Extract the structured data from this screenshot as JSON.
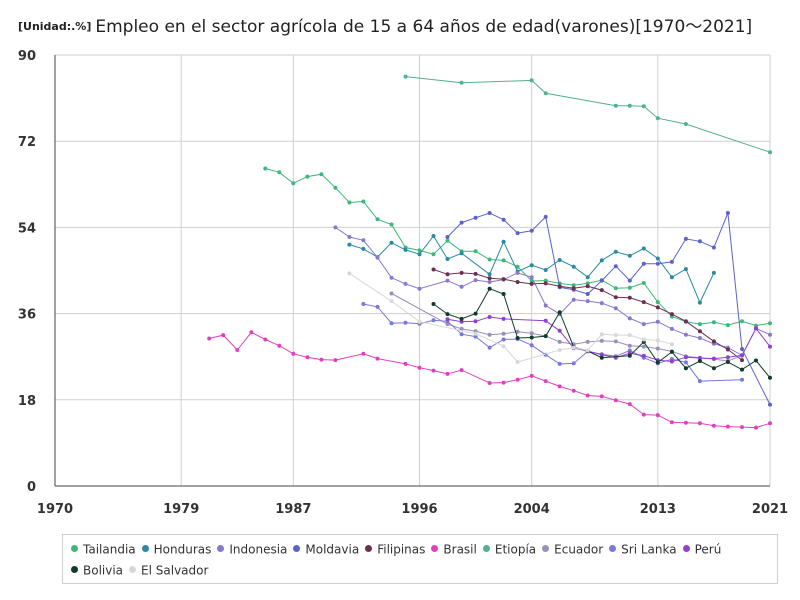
{
  "header": {
    "unit": "[Unidad:.%]",
    "title": "Empleo en el sector agrícola de 15 a 64 años de edad(varones)[1970～2021]"
  },
  "chart_data": {
    "type": "line",
    "xlim": [
      1970,
      2021
    ],
    "ylim": [
      0,
      90
    ],
    "x_ticks": [
      1970,
      1979,
      1987,
      1996,
      2004,
      2013,
      2021
    ],
    "y_ticks": [
      0,
      18,
      36,
      54,
      72,
      90
    ],
    "grid": true,
    "legend_position": "bottom",
    "series": [
      {
        "name": "Tailandia",
        "color": "#3cb878",
        "points": [
          [
            1985,
            66.3
          ],
          [
            1986,
            65.5
          ],
          [
            1987,
            63.2
          ],
          [
            1988,
            64.6
          ],
          [
            1989,
            65.1
          ],
          [
            1990,
            62.3
          ],
          [
            1991,
            59.2
          ],
          [
            1992,
            59.4
          ],
          [
            1993,
            55.7
          ],
          [
            1994,
            54.6
          ],
          [
            1995,
            49.8
          ],
          [
            1996,
            49.2
          ],
          [
            1997,
            48.4
          ],
          [
            1998,
            51.2
          ],
          [
            1999,
            49.0
          ],
          [
            2000,
            49.0
          ],
          [
            2001,
            47.3
          ],
          [
            2002,
            47.1
          ],
          [
            2003,
            45.8
          ],
          [
            2004,
            42.8
          ],
          [
            2005,
            42.9
          ],
          [
            2006,
            42.3
          ],
          [
            2007,
            41.9
          ],
          [
            2008,
            42.3
          ],
          [
            2009,
            43.0
          ],
          [
            2010,
            41.3
          ],
          [
            2011,
            41.4
          ],
          [
            2012,
            42.4
          ],
          [
            2013,
            38.4
          ],
          [
            2014,
            35.4
          ],
          [
            2015,
            34.3
          ],
          [
            2016,
            33.8
          ],
          [
            2017,
            34.2
          ],
          [
            2018,
            33.6
          ],
          [
            2019,
            34.4
          ],
          [
            2020,
            33.5
          ],
          [
            2021,
            34.0
          ]
        ]
      },
      {
        "name": "Honduras",
        "color": "#2a8aa0",
        "points": [
          [
            1991,
            50.4
          ],
          [
            1992,
            49.5
          ],
          [
            1993,
            47.8
          ],
          [
            1994,
            50.8
          ],
          [
            1995,
            49.3
          ],
          [
            1996,
            48.4
          ],
          [
            1997,
            52.2
          ],
          [
            1998,
            47.4
          ],
          [
            1999,
            48.6
          ],
          [
            2001,
            44.2
          ],
          [
            2002,
            51.0
          ],
          [
            2003,
            44.8
          ],
          [
            2004,
            46.1
          ],
          [
            2005,
            45.1
          ],
          [
            2006,
            47.2
          ],
          [
            2007,
            45.8
          ],
          [
            2008,
            43.6
          ],
          [
            2009,
            47.1
          ],
          [
            2010,
            48.9
          ],
          [
            2011,
            48.1
          ],
          [
            2012,
            49.6
          ],
          [
            2013,
            47.5
          ],
          [
            2014,
            43.6
          ],
          [
            2015,
            45.3
          ],
          [
            2016,
            38.3
          ],
          [
            2017,
            44.5
          ]
        ]
      },
      {
        "name": "Indonesia",
        "color": "#8878d0",
        "points": [
          [
            1990,
            54.0
          ],
          [
            1991,
            52.0
          ],
          [
            1992,
            51.3
          ],
          [
            1993,
            47.7
          ],
          [
            1994,
            43.5
          ],
          [
            1995,
            42.2
          ],
          [
            1996,
            41.2
          ],
          [
            1998,
            42.9
          ],
          [
            1999,
            41.6
          ],
          [
            2000,
            43.0
          ],
          [
            2001,
            42.6
          ],
          [
            2002,
            43.1
          ],
          [
            2003,
            44.5
          ],
          [
            2004,
            43.6
          ],
          [
            2005,
            37.7
          ],
          [
            2006,
            35.9
          ],
          [
            2007,
            38.9
          ],
          [
            2008,
            38.6
          ],
          [
            2009,
            38.2
          ],
          [
            2010,
            37.1
          ],
          [
            2011,
            35.0
          ],
          [
            2012,
            33.8
          ],
          [
            2013,
            34.3
          ],
          [
            2014,
            32.8
          ],
          [
            2015,
            31.6
          ],
          [
            2016,
            30.9
          ],
          [
            2017,
            29.7
          ],
          [
            2018,
            28.9
          ],
          [
            2019,
            27.3
          ],
          [
            2020,
            32.9
          ],
          [
            2021,
            31.6
          ]
        ]
      },
      {
        "name": "Moldavia",
        "color": "#5b62c8",
        "points": [
          [
            1998,
            52.0
          ],
          [
            1999,
            55.0
          ],
          [
            2000,
            56.0
          ],
          [
            2001,
            57.0
          ],
          [
            2002,
            55.6
          ],
          [
            2003,
            52.8
          ],
          [
            2004,
            53.3
          ],
          [
            2005,
            56.2
          ],
          [
            2006,
            41.5
          ],
          [
            2007,
            41.0
          ],
          [
            2008,
            40.1
          ],
          [
            2009,
            42.9
          ],
          [
            2010,
            45.9
          ],
          [
            2011,
            42.9
          ],
          [
            2012,
            46.4
          ],
          [
            2013,
            46.4
          ],
          [
            2014,
            46.8
          ],
          [
            2015,
            51.6
          ],
          [
            2016,
            51.1
          ],
          [
            2017,
            49.8
          ],
          [
            2018,
            57.0
          ],
          [
            2019,
            28.6
          ],
          [
            2021,
            17.0
          ]
        ]
      },
      {
        "name": "Filipinas",
        "color": "#6b3050",
        "points": [
          [
            1997,
            45.2
          ],
          [
            1998,
            44.2
          ],
          [
            1999,
            44.5
          ],
          [
            2000,
            44.3
          ],
          [
            2001,
            43.4
          ],
          [
            2002,
            43.2
          ],
          [
            2003,
            42.6
          ],
          [
            2004,
            42.2
          ],
          [
            2005,
            42.3
          ],
          [
            2006,
            41.7
          ],
          [
            2007,
            41.3
          ],
          [
            2008,
            41.7
          ],
          [
            2009,
            40.9
          ],
          [
            2010,
            39.4
          ],
          [
            2011,
            39.3
          ],
          [
            2012,
            38.4
          ],
          [
            2013,
            37.3
          ],
          [
            2014,
            35.9
          ],
          [
            2015,
            34.4
          ],
          [
            2016,
            32.3
          ],
          [
            2017,
            30.2
          ],
          [
            2018,
            28.5
          ],
          [
            2019,
            26.3
          ]
        ]
      },
      {
        "name": "Brasil",
        "color": "#e040c0",
        "points": [
          [
            1981,
            30.8
          ],
          [
            1982,
            31.5
          ],
          [
            1983,
            28.4
          ],
          [
            1984,
            32.1
          ],
          [
            1985,
            30.6
          ],
          [
            1986,
            29.3
          ],
          [
            1987,
            27.6
          ],
          [
            1988,
            26.9
          ],
          [
            1989,
            26.4
          ],
          [
            1990,
            26.3
          ],
          [
            1992,
            27.6
          ],
          [
            1993,
            26.6
          ],
          [
            1995,
            25.5
          ],
          [
            1996,
            24.7
          ],
          [
            1997,
            24.1
          ],
          [
            1998,
            23.4
          ],
          [
            1999,
            24.2
          ],
          [
            2001,
            21.5
          ],
          [
            2002,
            21.6
          ],
          [
            2003,
            22.2
          ],
          [
            2004,
            23.0
          ],
          [
            2005,
            21.9
          ],
          [
            2006,
            20.8
          ],
          [
            2007,
            19.9
          ],
          [
            2008,
            18.9
          ],
          [
            2009,
            18.7
          ],
          [
            2010,
            17.9
          ],
          [
            2011,
            17.1
          ],
          [
            2012,
            14.9
          ],
          [
            2013,
            14.8
          ],
          [
            2014,
            13.3
          ],
          [
            2015,
            13.2
          ],
          [
            2016,
            13.1
          ],
          [
            2017,
            12.6
          ],
          [
            2018,
            12.4
          ],
          [
            2019,
            12.3
          ],
          [
            2020,
            12.2
          ],
          [
            2021,
            13.1
          ]
        ]
      },
      {
        "name": "Etiopía",
        "color": "#50b090",
        "points": [
          [
            1995,
            85.5
          ],
          [
            1999,
            84.2
          ],
          [
            2004,
            84.7
          ],
          [
            2005,
            82.0
          ],
          [
            2010,
            79.4
          ],
          [
            2011,
            79.4
          ],
          [
            2012,
            79.3
          ],
          [
            2013,
            76.8
          ],
          [
            2015,
            75.6
          ],
          [
            2021,
            69.7
          ]
        ]
      },
      {
        "name": "Ecuador",
        "color": "#9890b8",
        "points": [
          [
            1994,
            40.2
          ],
          [
            1998,
            33.8
          ],
          [
            1999,
            32.8
          ],
          [
            2000,
            32.3
          ],
          [
            2001,
            31.6
          ],
          [
            2002,
            31.8
          ],
          [
            2003,
            32.2
          ],
          [
            2004,
            31.9
          ],
          [
            2005,
            31.3
          ],
          [
            2006,
            30.1
          ],
          [
            2007,
            29.6
          ],
          [
            2008,
            30.1
          ],
          [
            2009,
            30.3
          ],
          [
            2010,
            30.2
          ],
          [
            2011,
            29.3
          ],
          [
            2012,
            29.1
          ],
          [
            2013,
            28.7
          ],
          [
            2014,
            28.1
          ],
          [
            2015,
            27.1
          ],
          [
            2016,
            26.8
          ],
          [
            2017,
            26.5
          ],
          [
            2018,
            26.1
          ],
          [
            2019,
            27.2
          ]
        ]
      },
      {
        "name": "Sri Lanka",
        "color": "#7a78d8",
        "points": [
          [
            1992,
            38.0
          ],
          [
            1993,
            37.4
          ],
          [
            1994,
            34.0
          ],
          [
            1995,
            34.1
          ],
          [
            1996,
            33.9
          ],
          [
            1997,
            34.6
          ],
          [
            1998,
            34.4
          ],
          [
            1999,
            31.7
          ],
          [
            2000,
            31.2
          ],
          [
            2001,
            28.9
          ],
          [
            2002,
            30.6
          ],
          [
            2003,
            30.7
          ],
          [
            2004,
            29.4
          ],
          [
            2005,
            27.4
          ],
          [
            2006,
            25.5
          ],
          [
            2007,
            25.6
          ],
          [
            2008,
            28.1
          ],
          [
            2009,
            27.5
          ],
          [
            2010,
            27.1
          ],
          [
            2011,
            28.3
          ],
          [
            2012,
            26.8
          ],
          [
            2013,
            25.6
          ],
          [
            2014,
            26.5
          ],
          [
            2015,
            25.8
          ],
          [
            2016,
            21.9
          ],
          [
            2019,
            22.2
          ]
        ]
      },
      {
        "name": "Perú",
        "color": "#9040d0",
        "points": [
          [
            1998,
            34.8
          ],
          [
            1999,
            34.3
          ],
          [
            2000,
            34.4
          ],
          [
            2001,
            35.3
          ],
          [
            2002,
            34.9
          ],
          [
            2005,
            34.5
          ],
          [
            2006,
            32.4
          ],
          [
            2007,
            28.8
          ],
          [
            2008,
            28.2
          ],
          [
            2009,
            27.4
          ],
          [
            2010,
            26.8
          ],
          [
            2011,
            27.7
          ],
          [
            2012,
            27.2
          ],
          [
            2013,
            26.3
          ],
          [
            2014,
            26.0
          ],
          [
            2015,
            26.9
          ],
          [
            2016,
            26.7
          ],
          [
            2017,
            26.6
          ],
          [
            2018,
            26.9
          ],
          [
            2019,
            27.3
          ],
          [
            2020,
            32.9
          ],
          [
            2021,
            29.1
          ]
        ]
      },
      {
        "name": "Bolivia",
        "color": "#103a2a",
        "points": [
          [
            1997,
            38.0
          ],
          [
            1998,
            35.9
          ],
          [
            1999,
            34.9
          ],
          [
            2000,
            36.0
          ],
          [
            2001,
            41.2
          ],
          [
            2002,
            40.1
          ],
          [
            2003,
            30.9
          ],
          [
            2004,
            31.0
          ],
          [
            2005,
            31.3
          ],
          [
            2006,
            36.3
          ],
          [
            2007,
            29.0
          ],
          [
            2008,
            28.2
          ],
          [
            2009,
            26.8
          ],
          [
            2011,
            27.2
          ],
          [
            2012,
            30.1
          ],
          [
            2013,
            25.8
          ],
          [
            2014,
            28.0
          ],
          [
            2015,
            24.6
          ],
          [
            2016,
            26.1
          ],
          [
            2017,
            24.6
          ],
          [
            2018,
            25.9
          ],
          [
            2019,
            24.3
          ],
          [
            2020,
            26.2
          ],
          [
            2021,
            22.6
          ]
        ]
      },
      {
        "name": "El Salvador",
        "color": "#d8d8d8",
        "points": [
          [
            1991,
            44.4
          ],
          [
            1994,
            38.6
          ],
          [
            1996,
            34.3
          ],
          [
            2000,
            31.8
          ],
          [
            2002,
            29.2
          ],
          [
            2003,
            25.9
          ],
          [
            2006,
            28.4
          ],
          [
            2007,
            28.9
          ],
          [
            2008,
            28.3
          ],
          [
            2009,
            31.7
          ],
          [
            2010,
            31.5
          ],
          [
            2011,
            31.5
          ],
          [
            2012,
            30.6
          ],
          [
            2013,
            30.4
          ],
          [
            2014,
            29.6
          ]
        ]
      }
    ]
  }
}
